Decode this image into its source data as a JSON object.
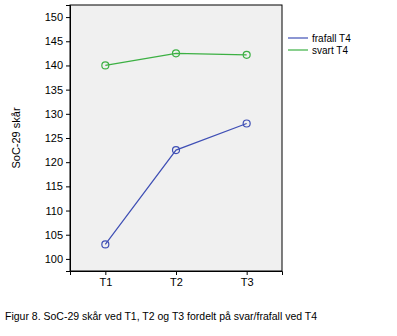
{
  "chart_data": {
    "type": "line",
    "title": "Figur 8. SoC-29 skår ved T1, T2 og T3 fordelt på svar/frafall ved T4",
    "y_label": "SoC-29 skår",
    "categories": [
      "T1",
      "T2",
      "T3"
    ],
    "series": [
      {
        "name": "frafall T4",
        "color": "#3f4fb5",
        "values": [
          103,
          122.5,
          128
        ]
      },
      {
        "name": "svart T4",
        "color": "#3cb043",
        "values": [
          140,
          142.5,
          142.2
        ]
      }
    ],
    "ylim": [
      97.5,
      152.5
    ],
    "yticks": [
      100,
      105,
      110,
      115,
      120,
      125,
      130,
      135,
      140,
      145,
      150
    ],
    "grid": false,
    "legend": "right",
    "marker": "circle",
    "line_style": "solid"
  }
}
